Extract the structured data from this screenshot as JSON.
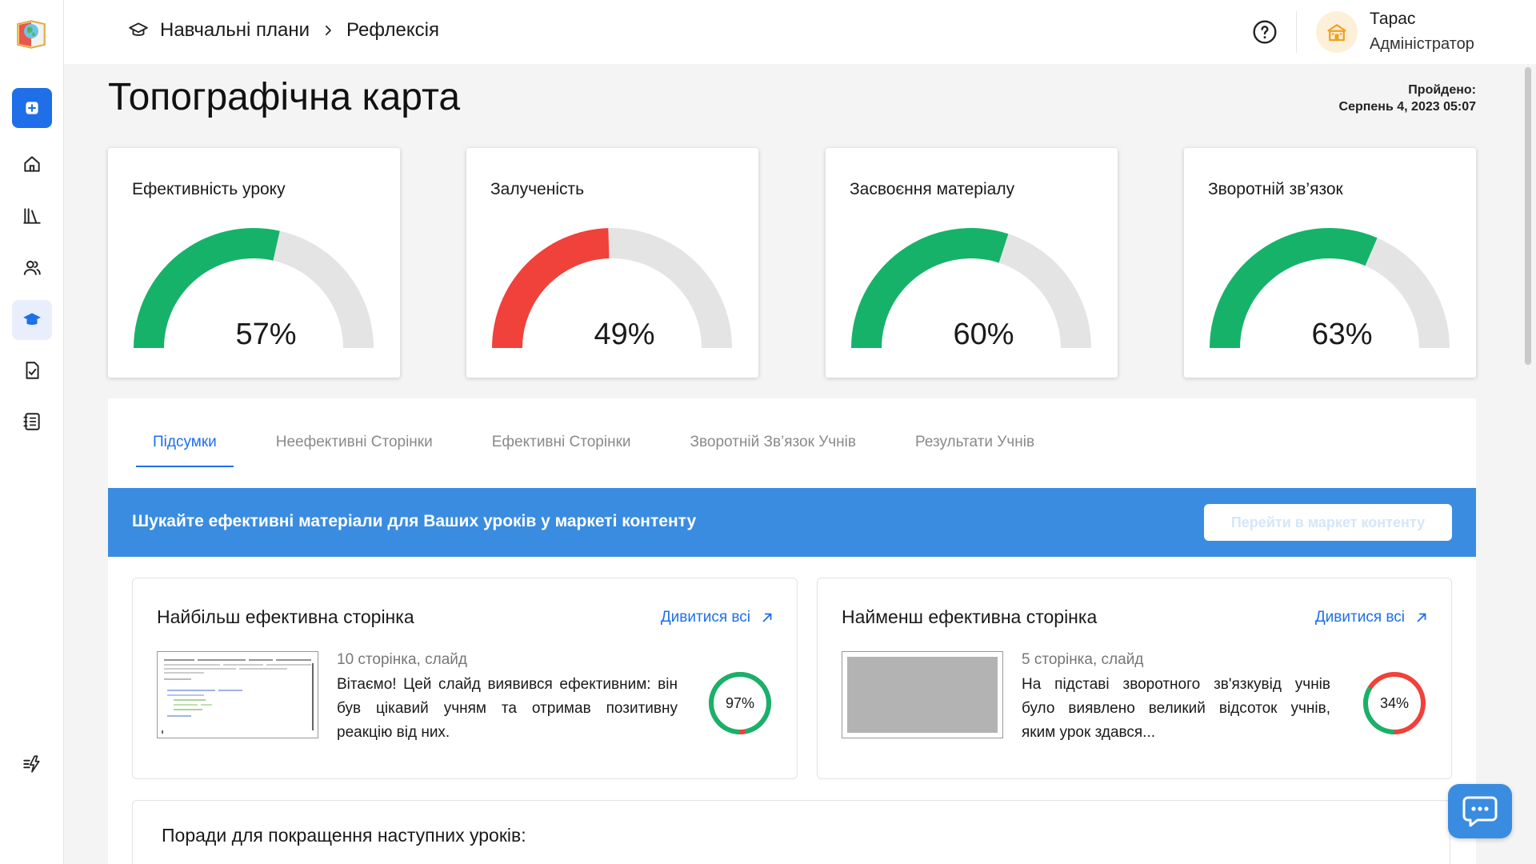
{
  "header": {
    "breadcrumb": [
      "Навчальні плани",
      "Рефлексія"
    ],
    "user_name": "Тарас",
    "user_role": "Адміністратор"
  },
  "page": {
    "title": "Топографічна карта",
    "passed_label": "Пройдено:",
    "passed_date": "Серпень 4, 2023 05:07"
  },
  "gauges": [
    {
      "title": "Ефективність уроку",
      "value": 57,
      "label": "57%",
      "color": "#17b26a"
    },
    {
      "title": "Залученість",
      "value": 49,
      "label": "49%",
      "color": "#f0413a"
    },
    {
      "title": "Засвоєння матеріалу",
      "value": 60,
      "label": "60%",
      "color": "#17b26a"
    },
    {
      "title": "Зворотній зв’язок",
      "value": 63,
      "label": "63%",
      "color": "#17b26a"
    }
  ],
  "tabs": [
    {
      "label": "Підсумки",
      "active": true
    },
    {
      "label": "Неефективні Сторінки",
      "active": false
    },
    {
      "label": "Ефективні Сторінки",
      "active": false
    },
    {
      "label": "Зворотній Зв’язок Учнів",
      "active": false
    },
    {
      "label": "Результати Учнів",
      "active": false
    }
  ],
  "banner": {
    "text": "Шукайте ефективні матеріали для Ваших уроків у маркеті контенту",
    "button": "Перейти в маркет контенту"
  },
  "best_page": {
    "title": "Найбільш ефективна сторінка",
    "see_all": "Дивитися всі",
    "meta": "10 сторінка, слайд",
    "description": "Вітаємо! Цей слайд виявився ефективним: він був цікавий учням та отримав позитивну реакцію від них.",
    "value": 97,
    "label": "97%"
  },
  "worst_page": {
    "title": "Найменш ефективна сторінка",
    "see_all": "Дивитися всі",
    "meta": "5 сторінка, слайд",
    "description": "На підставі зворотного зв'язкувід учнів було виявлено великий відсоток учнів, яким урок здався...",
    "value": 34,
    "label": "34%"
  },
  "tips": {
    "title": "Поради для покращення наступних уроків:"
  },
  "colors": {
    "accent": "#1e6fe8",
    "banner": "#3a8ce0",
    "good": "#17b26a",
    "bad": "#f0413a",
    "track": "#e4e4e4"
  }
}
